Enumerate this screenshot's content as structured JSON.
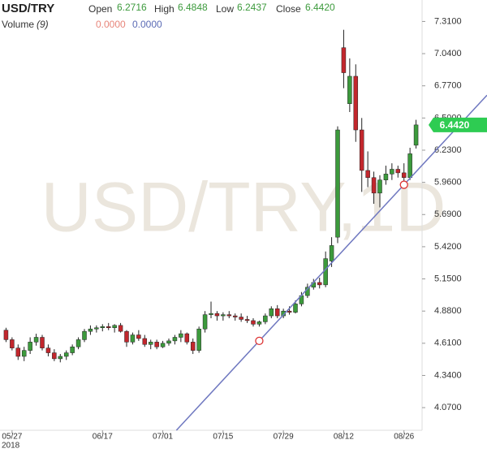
{
  "chart_data": {
    "type": "candlestick",
    "title": "USD/TRY",
    "watermark": "USD/TRY,1D",
    "legend": {
      "open_label": "Open",
      "open": "6.2716",
      "high_label": "High",
      "high": "6.4848",
      "low_label": "Low",
      "low": "6.2437",
      "close_label": "Close",
      "close": "6.4420",
      "volume_label": "Volume",
      "volume_period": "(9)",
      "volume_values": [
        "0.0000",
        "0.0000"
      ],
      "volume_colors": [
        "#e8857a",
        "#5b6bb5"
      ]
    },
    "year_label": "2018",
    "up_color": "#3c9a3c",
    "down_color": "#c2272d",
    "trend_color": "#6f78c0",
    "x": [
      "2018-05-25",
      "2018-05-28",
      "2018-05-29",
      "2018-05-30",
      "2018-05-31",
      "2018-06-01",
      "2018-06-04",
      "2018-06-05",
      "2018-06-06",
      "2018-06-07",
      "2018-06-08",
      "2018-06-11",
      "2018-06-12",
      "2018-06-13",
      "2018-06-14",
      "2018-06-15",
      "2018-06-18",
      "2018-06-19",
      "2018-06-20",
      "2018-06-21",
      "2018-06-22",
      "2018-06-25",
      "2018-06-26",
      "2018-06-27",
      "2018-06-28",
      "2018-06-29",
      "2018-07-02",
      "2018-07-03",
      "2018-07-04",
      "2018-07-05",
      "2018-07-06",
      "2018-07-09",
      "2018-07-10",
      "2018-07-11",
      "2018-07-12",
      "2018-07-13",
      "2018-07-16",
      "2018-07-17",
      "2018-07-18",
      "2018-07-19",
      "2018-07-20",
      "2018-07-23",
      "2018-07-24",
      "2018-07-25",
      "2018-07-26",
      "2018-07-27",
      "2018-07-30",
      "2018-07-31",
      "2018-08-01",
      "2018-08-02",
      "2018-08-03",
      "2018-08-06",
      "2018-08-07",
      "2018-08-08",
      "2018-08-09",
      "2018-08-10",
      "2018-08-13",
      "2018-08-14",
      "2018-08-15",
      "2018-08-16",
      "2018-08-17",
      "2018-08-20",
      "2018-08-21",
      "2018-08-22",
      "2018-08-23",
      "2018-08-24",
      "2018-08-27",
      "2018-08-28",
      "2018-08-29"
    ],
    "open": [
      4.72,
      4.64,
      4.57,
      4.5,
      4.55,
      4.62,
      4.66,
      4.57,
      4.53,
      4.48,
      4.5,
      4.53,
      4.58,
      4.64,
      4.71,
      4.73,
      4.74,
      4.75,
      4.74,
      4.76,
      4.71,
      4.62,
      4.68,
      4.65,
      4.6,
      4.62,
      4.58,
      4.61,
      4.63,
      4.66,
      4.69,
      4.62,
      4.55,
      4.73,
      4.85,
      4.86,
      4.84,
      4.85,
      4.84,
      4.83,
      4.81,
      4.8,
      4.77,
      4.79,
      4.84,
      4.9,
      4.84,
      4.88,
      4.87,
      4.94,
      5.01,
      5.08,
      5.12,
      5.1,
      5.3,
      5.5,
      7.09,
      6.62,
      6.85,
      6.4,
      6.06,
      6.0,
      5.87,
      5.98,
      6.03,
      6.07,
      6.04,
      6.0,
      6.2716
    ],
    "high": [
      4.74,
      4.66,
      4.6,
      4.58,
      4.66,
      4.69,
      4.68,
      4.6,
      4.56,
      4.52,
      4.55,
      4.6,
      4.66,
      4.73,
      4.76,
      4.76,
      4.77,
      4.78,
      4.77,
      4.78,
      4.72,
      4.7,
      4.72,
      4.68,
      4.64,
      4.64,
      4.63,
      4.65,
      4.68,
      4.72,
      4.7,
      4.65,
      4.75,
      4.88,
      4.96,
      4.88,
      4.87,
      4.88,
      4.86,
      4.86,
      4.84,
      4.82,
      4.8,
      4.86,
      4.92,
      4.93,
      4.9,
      4.92,
      4.97,
      5.04,
      5.11,
      5.15,
      5.16,
      5.38,
      5.5,
      6.43,
      7.24,
      7.0,
      6.95,
      6.5,
      6.22,
      6.05,
      6.02,
      6.1,
      6.12,
      6.1,
      6.12,
      6.25,
      6.4848
    ],
    "low": [
      4.62,
      4.55,
      4.47,
      4.46,
      4.52,
      4.59,
      4.55,
      4.5,
      4.46,
      4.45,
      4.47,
      4.51,
      4.56,
      4.62,
      4.68,
      4.7,
      4.71,
      4.72,
      4.7,
      4.7,
      4.58,
      4.6,
      4.63,
      4.58,
      4.56,
      4.56,
      4.57,
      4.59,
      4.6,
      4.62,
      4.6,
      4.52,
      4.53,
      4.7,
      4.82,
      4.8,
      4.8,
      4.82,
      4.8,
      4.79,
      4.78,
      4.75,
      4.75,
      4.77,
      4.82,
      4.82,
      4.82,
      4.85,
      4.86,
      4.92,
      4.99,
      5.06,
      5.07,
      5.08,
      5.25,
      5.45,
      6.75,
      6.55,
      6.3,
      5.88,
      5.92,
      5.78,
      5.75,
      5.94,
      5.98,
      6.0,
      5.97,
      5.98,
      6.2437
    ],
    "close": [
      4.64,
      4.57,
      4.5,
      4.55,
      4.62,
      4.66,
      4.57,
      4.53,
      4.48,
      4.5,
      4.53,
      4.58,
      4.64,
      4.71,
      4.73,
      4.74,
      4.75,
      4.74,
      4.76,
      4.71,
      4.62,
      4.68,
      4.65,
      4.6,
      4.62,
      4.58,
      4.61,
      4.63,
      4.66,
      4.69,
      4.62,
      4.55,
      4.73,
      4.85,
      4.86,
      4.84,
      4.85,
      4.84,
      4.83,
      4.81,
      4.8,
      4.77,
      4.79,
      4.84,
      4.9,
      4.84,
      4.88,
      4.87,
      4.94,
      5.01,
      5.08,
      5.12,
      5.1,
      5.32,
      5.43,
      6.4,
      6.88,
      6.85,
      6.4,
      6.06,
      6.0,
      5.87,
      5.98,
      6.03,
      6.07,
      6.04,
      6.0,
      6.2,
      6.442
    ],
    "trendline": {
      "x": [
        "2018-07-24",
        "2018-08-27"
      ],
      "y": [
        4.63,
        5.94
      ]
    },
    "xlim": [
      "2018-05-24",
      "2018-08-30"
    ],
    "xticks": [
      {
        "value": "2018-05-27",
        "label": "05/27"
      },
      {
        "value": "2018-06-17",
        "label": "06/17"
      },
      {
        "value": "2018-07-01",
        "label": "07/01"
      },
      {
        "value": "2018-07-15",
        "label": "07/15"
      },
      {
        "value": "2018-07-29",
        "label": "07/29"
      },
      {
        "value": "2018-08-12",
        "label": "08/12"
      },
      {
        "value": "2018-08-26",
        "label": "08/26"
      }
    ],
    "ylim": [
      3.88,
      7.49
    ],
    "yticks": [
      {
        "value": 7.31,
        "label": "7.3100"
      },
      {
        "value": 7.04,
        "label": "7.0400"
      },
      {
        "value": 6.77,
        "label": "6.7700"
      },
      {
        "value": 6.5,
        "label": "6.5000"
      },
      {
        "value": 6.23,
        "label": "6.2300"
      },
      {
        "value": 5.96,
        "label": "5.9600"
      },
      {
        "value": 5.69,
        "label": "5.6900"
      },
      {
        "value": 5.42,
        "label": "5.4200"
      },
      {
        "value": 5.15,
        "label": "5.1500"
      },
      {
        "value": 4.88,
        "label": "4.8800"
      },
      {
        "value": 4.61,
        "label": "4.6100"
      },
      {
        "value": 4.34,
        "label": "4.3400"
      },
      {
        "value": 4.07,
        "label": "4.0700"
      }
    ],
    "grid": false
  }
}
